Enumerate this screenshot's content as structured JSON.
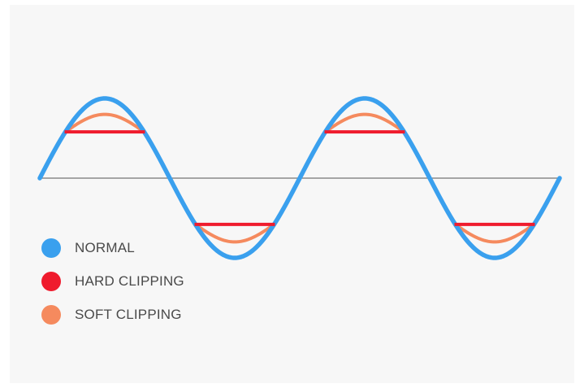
{
  "legend": {
    "items": [
      {
        "label": "NORMAL",
        "color": "#3aa0ee"
      },
      {
        "label": "HARD CLIPPING",
        "color": "#ef1b2d"
      },
      {
        "label": "SOFT CLIPPING",
        "color": "#f58a5e"
      }
    ]
  },
  "colors": {
    "normal": "#3aa0ee",
    "hard_clipping": "#ef1b2d",
    "soft_clipping": "#f58a5e",
    "axis": "#8a8a8a",
    "background": "#f7f7f7"
  },
  "diagram": {
    "cycles": 2,
    "clip_level_fraction": 0.58,
    "soft_clip_peak_fraction": 0.8
  }
}
